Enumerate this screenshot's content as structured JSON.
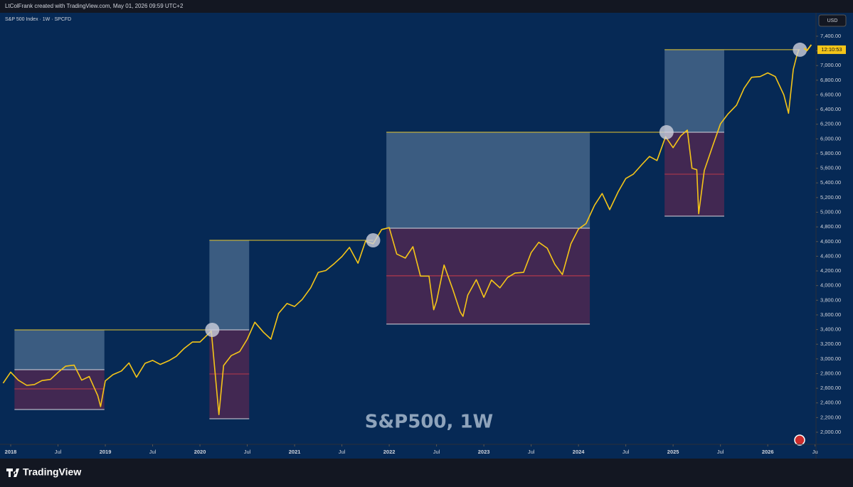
{
  "header": {
    "credit": "LtColFrank created with TradingView.com, May 01, 2026 09:59 UTC+2",
    "symbol": "S&P 500 Index · 1W · SPCFD",
    "currency": "USD",
    "countdown": "12:10:53"
  },
  "footer": {
    "brand": "TradingView"
  },
  "chart_data": {
    "type": "line",
    "watermark": "S&P500, 1W",
    "color": "#f5c518",
    "x": [
      2017.92,
      2018.0,
      2018.08,
      2018.17,
      2018.25,
      2018.33,
      2018.42,
      2018.5,
      2018.58,
      2018.67,
      2018.75,
      2018.83,
      2018.92,
      2018.95,
      2019.0,
      2019.08,
      2019.17,
      2019.25,
      2019.33,
      2019.42,
      2019.5,
      2019.58,
      2019.67,
      2019.75,
      2019.83,
      2019.92,
      2020.0,
      2020.12,
      2020.2,
      2020.25,
      2020.33,
      2020.42,
      2020.5,
      2020.58,
      2020.67,
      2020.75,
      2020.83,
      2020.92,
      2021.0,
      2021.08,
      2021.17,
      2021.25,
      2021.33,
      2021.42,
      2021.5,
      2021.58,
      2021.67,
      2021.75,
      2021.83,
      2021.92,
      2022.0,
      2022.08,
      2022.17,
      2022.25,
      2022.33,
      2022.42,
      2022.47,
      2022.5,
      2022.58,
      2022.67,
      2022.75,
      2022.78,
      2022.83,
      2022.92,
      2023.0,
      2023.08,
      2023.17,
      2023.25,
      2023.33,
      2023.42,
      2023.5,
      2023.58,
      2023.67,
      2023.75,
      2023.83,
      2023.92,
      2024.0,
      2024.08,
      2024.17,
      2024.25,
      2024.33,
      2024.42,
      2024.5,
      2024.58,
      2024.67,
      2024.75,
      2024.83,
      2024.92,
      2025.0,
      2025.08,
      2025.15,
      2025.2,
      2025.25,
      2025.27,
      2025.33,
      2025.42,
      2025.5,
      2025.58,
      2025.67,
      2025.75,
      2025.83,
      2025.92,
      2026.0,
      2026.08,
      2026.17,
      2026.22,
      2026.27,
      2026.31,
      2026.33
    ],
    "values": [
      2670,
      2820,
      2710,
      2640,
      2650,
      2705,
      2720,
      2815,
      2900,
      2915,
      2710,
      2760,
      2500,
      2350,
      2700,
      2785,
      2835,
      2945,
      2750,
      2940,
      2980,
      2925,
      2975,
      3035,
      3140,
      3230,
      3230,
      3380,
      2240,
      2910,
      3045,
      3100,
      3270,
      3500,
      3365,
      3270,
      3620,
      3755,
      3715,
      3810,
      3970,
      4180,
      4205,
      4300,
      4395,
      4520,
      4305,
      4605,
      4570,
      4765,
      4790,
      4430,
      4375,
      4530,
      4130,
      4130,
      3670,
      3785,
      4280,
      3955,
      3640,
      3580,
      3870,
      4080,
      3840,
      4075,
      3970,
      4110,
      4170,
      4180,
      4450,
      4590,
      4510,
      4290,
      4150,
      4570,
      4770,
      4845,
      5095,
      5255,
      5035,
      5280,
      5460,
      5520,
      5650,
      5760,
      5705,
      6030,
      5880,
      6040,
      6120,
      5600,
      5580,
      4980,
      5570,
      5910,
      6205,
      6340,
      6460,
      6690,
      6840,
      6850,
      6900,
      6850,
      6600,
      6350,
      6950,
      7150,
      7220
    ],
    "zones": [
      {
        "x0": 2018.04,
        "x1": 2018.99,
        "hit_x": 2020.13,
        "top": 3396,
        "split": 2853,
        "mid": 2591,
        "bottom": 2310
      },
      {
        "x0": 2020.1,
        "x1": 2020.52,
        "hit_x": 2021.83,
        "top": 4617,
        "split": 3396,
        "mid": 2795,
        "bottom": 2184
      },
      {
        "x0": 2021.97,
        "x1": 2024.12,
        "hit_x": 2024.93,
        "top": 6091,
        "split": 4782,
        "mid": 4133,
        "bottom": 3474
      },
      {
        "x0": 2024.91,
        "x1": 2025.54,
        "hit_x": 2026.34,
        "top": 7216,
        "split": 6091,
        "mid": 5519,
        "bottom": 4947
      }
    ],
    "xlim": [
      2017.887,
      2026.51
    ],
    "xticks": [
      2018,
      {
        "value": 2018.5,
        "label": "Jul"
      },
      2019,
      {
        "value": 2019.5,
        "label": "Jul"
      },
      2020,
      {
        "value": 2020.5,
        "label": "Jul"
      },
      2021,
      {
        "value": 2021.5,
        "label": "Jul"
      },
      2022,
      {
        "value": 2022.5,
        "label": "Jul"
      },
      2023,
      {
        "value": 2023.5,
        "label": "Jul"
      },
      2024,
      {
        "value": 2024.5,
        "label": "Jul"
      },
      2025,
      {
        "value": 2025.5,
        "label": "Jul"
      },
      2026,
      {
        "value": 2026.5,
        "label": "Ju"
      }
    ],
    "ylim": [
      1835,
      7700
    ],
    "yticks": [
      {
        "value": 2000,
        "label": "2,000.00"
      },
      {
        "value": 2200,
        "label": "2,200.00"
      },
      {
        "value": 2400,
        "label": "2,400.00"
      },
      {
        "value": 2600,
        "label": "2,600.00"
      },
      {
        "value": 2800,
        "label": "2,800.00"
      },
      {
        "value": 3000,
        "label": "3,000.00"
      },
      {
        "value": 3200,
        "label": "3,200.00"
      },
      {
        "value": 3400,
        "label": "3,400.00"
      },
      {
        "value": 3600,
        "label": "3,600.00"
      },
      {
        "value": 3800,
        "label": "3,800.00"
      },
      {
        "value": 4000,
        "label": "4,000.00"
      },
      {
        "value": 4200,
        "label": "4,200.00"
      },
      {
        "value": 4400,
        "label": "4,400.00"
      },
      {
        "value": 4600,
        "label": "4,600.00"
      },
      {
        "value": 4800,
        "label": "4,800.00"
      },
      {
        "value": 5000,
        "label": "5,000.00"
      },
      {
        "value": 5200,
        "label": "5,200.00"
      },
      {
        "value": 5400,
        "label": "5,400.00"
      },
      {
        "value": 5600,
        "label": "5,600.00"
      },
      {
        "value": 5800,
        "label": "5,800.00"
      },
      {
        "value": 6000,
        "label": "6,000.00"
      },
      {
        "value": 6200,
        "label": "6,200.00"
      },
      {
        "value": 6400,
        "label": "6,400.00"
      },
      {
        "value": 6600,
        "label": "6,600.00"
      },
      {
        "value": 6800,
        "label": "6,800.00"
      },
      {
        "value": 7000,
        "label": "7,000.00"
      },
      {
        "value": 7200,
        "label": "7,200.00"
      },
      {
        "value": 7400,
        "label": "7,400.00"
      }
    ],
    "grid": false
  }
}
